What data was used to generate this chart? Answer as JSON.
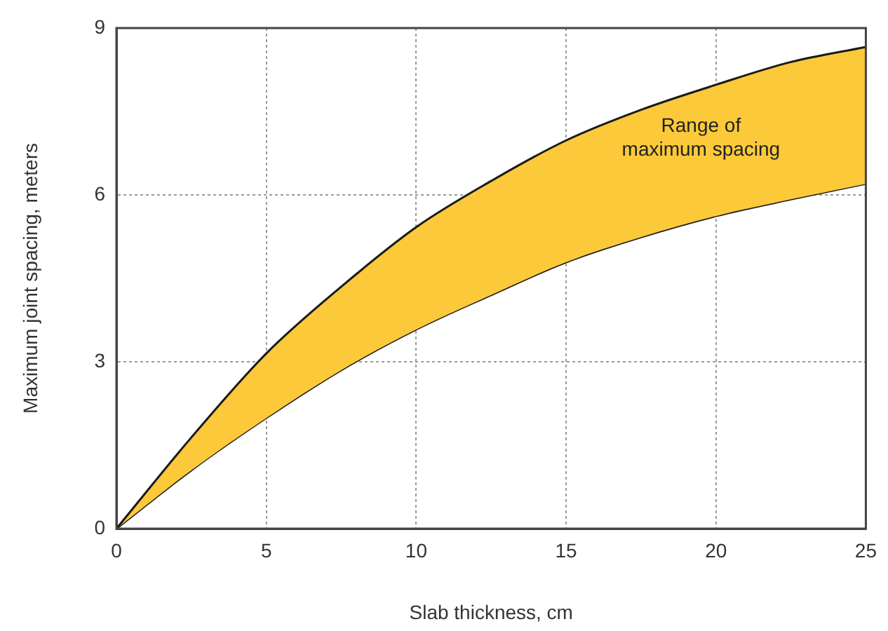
{
  "chart_data": {
    "type": "area",
    "xlabel": "Slab thickness, cm",
    "ylabel": "Maximum joint spacing, meters",
    "x": [
      0,
      2.5,
      5,
      7.5,
      10,
      12.5,
      15,
      17.5,
      20,
      22.5,
      25
    ],
    "series": [
      {
        "color": "#fcc93a",
        "values": [
          0,
          1.64,
          3.15,
          4.35,
          5.42,
          6.25,
          6.98,
          7.53,
          7.98,
          8.39,
          8.66
        ]
      },
      {
        "type": "line",
        "color": "#1a1a1a",
        "values": [
          0,
          1.05,
          1.99,
          2.85,
          3.58,
          4.2,
          4.79,
          5.24,
          5.62,
          5.92,
          6.2
        ]
      }
    ],
    "xlim": [
      0,
      25
    ],
    "xticks": [
      0,
      5,
      10,
      15,
      20,
      25
    ],
    "ylim": [
      0,
      9
    ],
    "yticks": [
      0,
      3,
      6,
      9
    ],
    "grid": true,
    "legend": false,
    "annotations": [
      "Range of\nmaximum spacing"
    ]
  }
}
